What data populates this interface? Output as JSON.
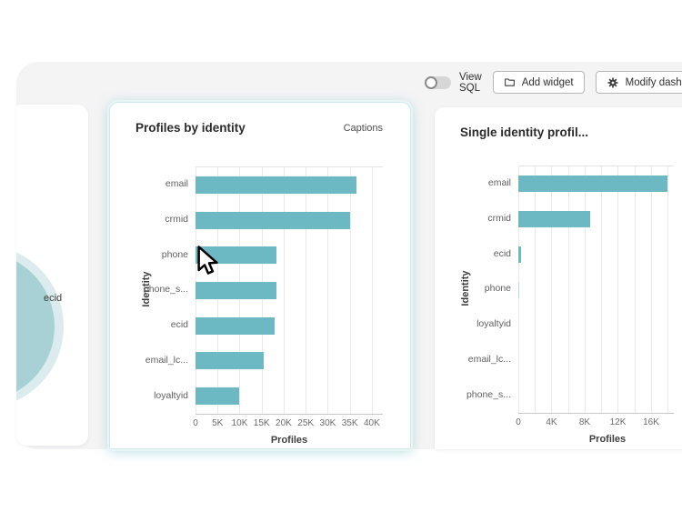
{
  "toolbar": {
    "view_sql_label": "View SQL",
    "add_widget_label": "Add widget",
    "modify_dash_label": "Modify dash"
  },
  "mini_card": {
    "circle_label": "ecid"
  },
  "widgets": {
    "left": {
      "title": "Profiles by identity",
      "captions_label": "Captions"
    },
    "right": {
      "title": "Single identity profil..."
    }
  },
  "colors": {
    "bar_teal": "#6cb8c3",
    "bar_teal_light": "#b9dfe4",
    "venn_inner": "#a7d1d5",
    "venn_outer": "#dcecee",
    "panel_bg": "#f4f4f5",
    "card_glow": "#cfeaec"
  },
  "chart_data": [
    {
      "type": "bar",
      "orientation": "horizontal",
      "title": "Profiles by identity",
      "categories": [
        "email",
        "crmid",
        "phone",
        "phone_s...",
        "ecid",
        "email_lc...",
        "loyaltyid"
      ],
      "values": [
        36500,
        35000,
        18300,
        18300,
        17900,
        15500,
        10000
      ],
      "xlabel": "Profiles",
      "ylabel": "Identity",
      "xlim": [
        0,
        42500
      ],
      "grid": true,
      "legend": false,
      "bar_color": "#6cb8c3",
      "ticks": [
        {
          "v": 0,
          "label": "0"
        },
        {
          "v": 5000,
          "label": "5K"
        },
        {
          "v": 10000,
          "label": "10K"
        },
        {
          "v": 15000,
          "label": "15K"
        },
        {
          "v": 20000,
          "label": "20K"
        },
        {
          "v": 25000,
          "label": "25K"
        },
        {
          "v": 30000,
          "label": "30K"
        },
        {
          "v": 35000,
          "label": "35K"
        },
        {
          "v": 40000,
          "label": "40K"
        }
      ]
    },
    {
      "type": "bar",
      "orientation": "horizontal",
      "title": "Single identity profil...",
      "categories": [
        "email",
        "crmid",
        "ecid",
        "phone",
        "loyaltyid",
        "email_lc...",
        "phone_s..."
      ],
      "values": [
        18000,
        8700,
        300,
        150,
        0,
        0,
        0
      ],
      "bar_colors": [
        "#6cb8c3",
        "#6cb8c3",
        "#6cb8c3",
        "#b9dfe4",
        "#6cb8c3",
        "#6cb8c3",
        "#6cb8c3"
      ],
      "xlabel": "Profiles",
      "ylabel": "Identity",
      "xlim": [
        0,
        18740
      ],
      "grid": true,
      "legend": false,
      "bar_color": "#6cb8c3",
      "ticks": [
        {
          "v": 0,
          "label": "0"
        },
        {
          "v": 2000,
          "label": ""
        },
        {
          "v": 4000,
          "label": "4K"
        },
        {
          "v": 6000,
          "label": ""
        },
        {
          "v": 8000,
          "label": "8K"
        },
        {
          "v": 10000,
          "label": ""
        },
        {
          "v": 12000,
          "label": "12K"
        },
        {
          "v": 14000,
          "label": ""
        },
        {
          "v": 16000,
          "label": "16K"
        },
        {
          "v": 18000,
          "label": ""
        }
      ]
    }
  ]
}
